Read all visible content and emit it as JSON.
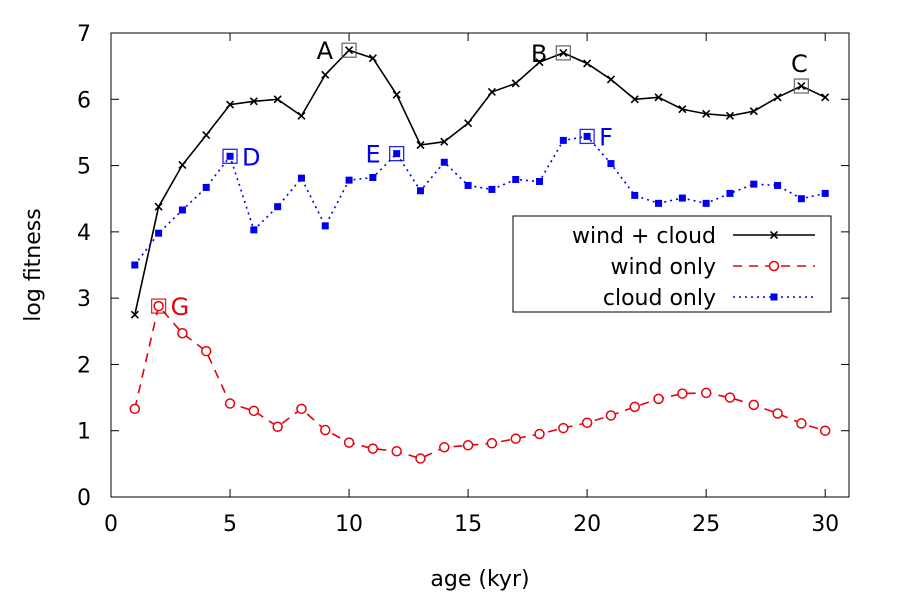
{
  "chart_data": {
    "type": "line",
    "xlabel": "age (kyr)",
    "ylabel": "log fitness",
    "xlim": [
      0,
      31
    ],
    "ylim": [
      0,
      7
    ],
    "xticks": [
      0,
      5,
      10,
      15,
      20,
      25,
      30
    ],
    "yticks": [
      0,
      1,
      2,
      3,
      4,
      5,
      6,
      7
    ],
    "legend_position": "right",
    "series": [
      {
        "name": "wind + cloud",
        "color": "#000000",
        "style": "solid",
        "marker": "cross",
        "x": [
          1,
          2,
          3,
          4,
          5,
          6,
          7,
          8,
          9,
          10,
          11,
          12,
          13,
          14,
          15,
          16,
          17,
          18,
          19,
          20,
          21,
          22,
          23,
          24,
          25,
          26,
          27,
          28,
          29,
          30
        ],
        "y": [
          2.75,
          4.38,
          5.01,
          5.46,
          5.92,
          5.97,
          6.0,
          5.75,
          6.37,
          6.74,
          6.62,
          6.07,
          5.31,
          5.36,
          5.64,
          6.11,
          6.24,
          6.56,
          6.7,
          6.54,
          6.3,
          6.0,
          6.03,
          5.85,
          5.78,
          5.75,
          5.82,
          6.03,
          6.2,
          6.03
        ]
      },
      {
        "name": "wind only",
        "color": "#e8000b",
        "style": "dashed",
        "marker": "circle",
        "x": [
          1,
          2,
          3,
          4,
          5,
          6,
          7,
          8,
          9,
          10,
          11,
          12,
          13,
          14,
          15,
          16,
          17,
          18,
          19,
          20,
          21,
          22,
          23,
          24,
          25,
          26,
          27,
          28,
          29,
          30
        ],
        "y": [
          1.33,
          2.88,
          2.47,
          2.2,
          1.41,
          1.3,
          1.06,
          1.33,
          1.01,
          0.82,
          0.73,
          0.69,
          0.58,
          0.75,
          0.78,
          0.81,
          0.88,
          0.95,
          1.04,
          1.12,
          1.23,
          1.36,
          1.48,
          1.56,
          1.57,
          1.5,
          1.39,
          1.26,
          1.11,
          1.0
        ]
      },
      {
        "name": "cloud only",
        "color": "#0000ee",
        "style": "dotted",
        "marker": "square",
        "x": [
          1,
          2,
          3,
          4,
          5,
          6,
          7,
          8,
          9,
          10,
          11,
          12,
          13,
          14,
          15,
          16,
          17,
          18,
          19,
          20,
          21,
          22,
          23,
          24,
          25,
          26,
          27,
          28,
          29,
          30
        ],
        "y": [
          3.5,
          3.98,
          4.33,
          4.67,
          5.14,
          4.03,
          4.38,
          4.81,
          4.09,
          4.78,
          4.82,
          5.18,
          4.62,
          5.05,
          4.7,
          4.64,
          4.79,
          4.76,
          5.38,
          5.44,
          5.03,
          4.55,
          4.43,
          4.51,
          4.43,
          4.58,
          4.72,
          4.7,
          4.5,
          4.58
        ]
      }
    ],
    "annotations": [
      {
        "label": "A",
        "x": 10,
        "y": 6.74,
        "color": "#000000",
        "side": "left"
      },
      {
        "label": "B",
        "x": 19,
        "y": 6.7,
        "color": "#000000",
        "side": "left"
      },
      {
        "label": "C",
        "x": 29,
        "y": 6.2,
        "color": "#000000",
        "side": "above"
      },
      {
        "label": "D",
        "x": 5,
        "y": 5.14,
        "color": "#0000ee",
        "side": "right"
      },
      {
        "label": "E",
        "x": 12,
        "y": 5.18,
        "color": "#0000ee",
        "side": "left"
      },
      {
        "label": "F",
        "x": 20,
        "y": 5.44,
        "color": "#0000ee",
        "side": "right"
      },
      {
        "label": "G",
        "x": 2,
        "y": 2.88,
        "color": "#e8000b",
        "side": "right"
      }
    ]
  }
}
